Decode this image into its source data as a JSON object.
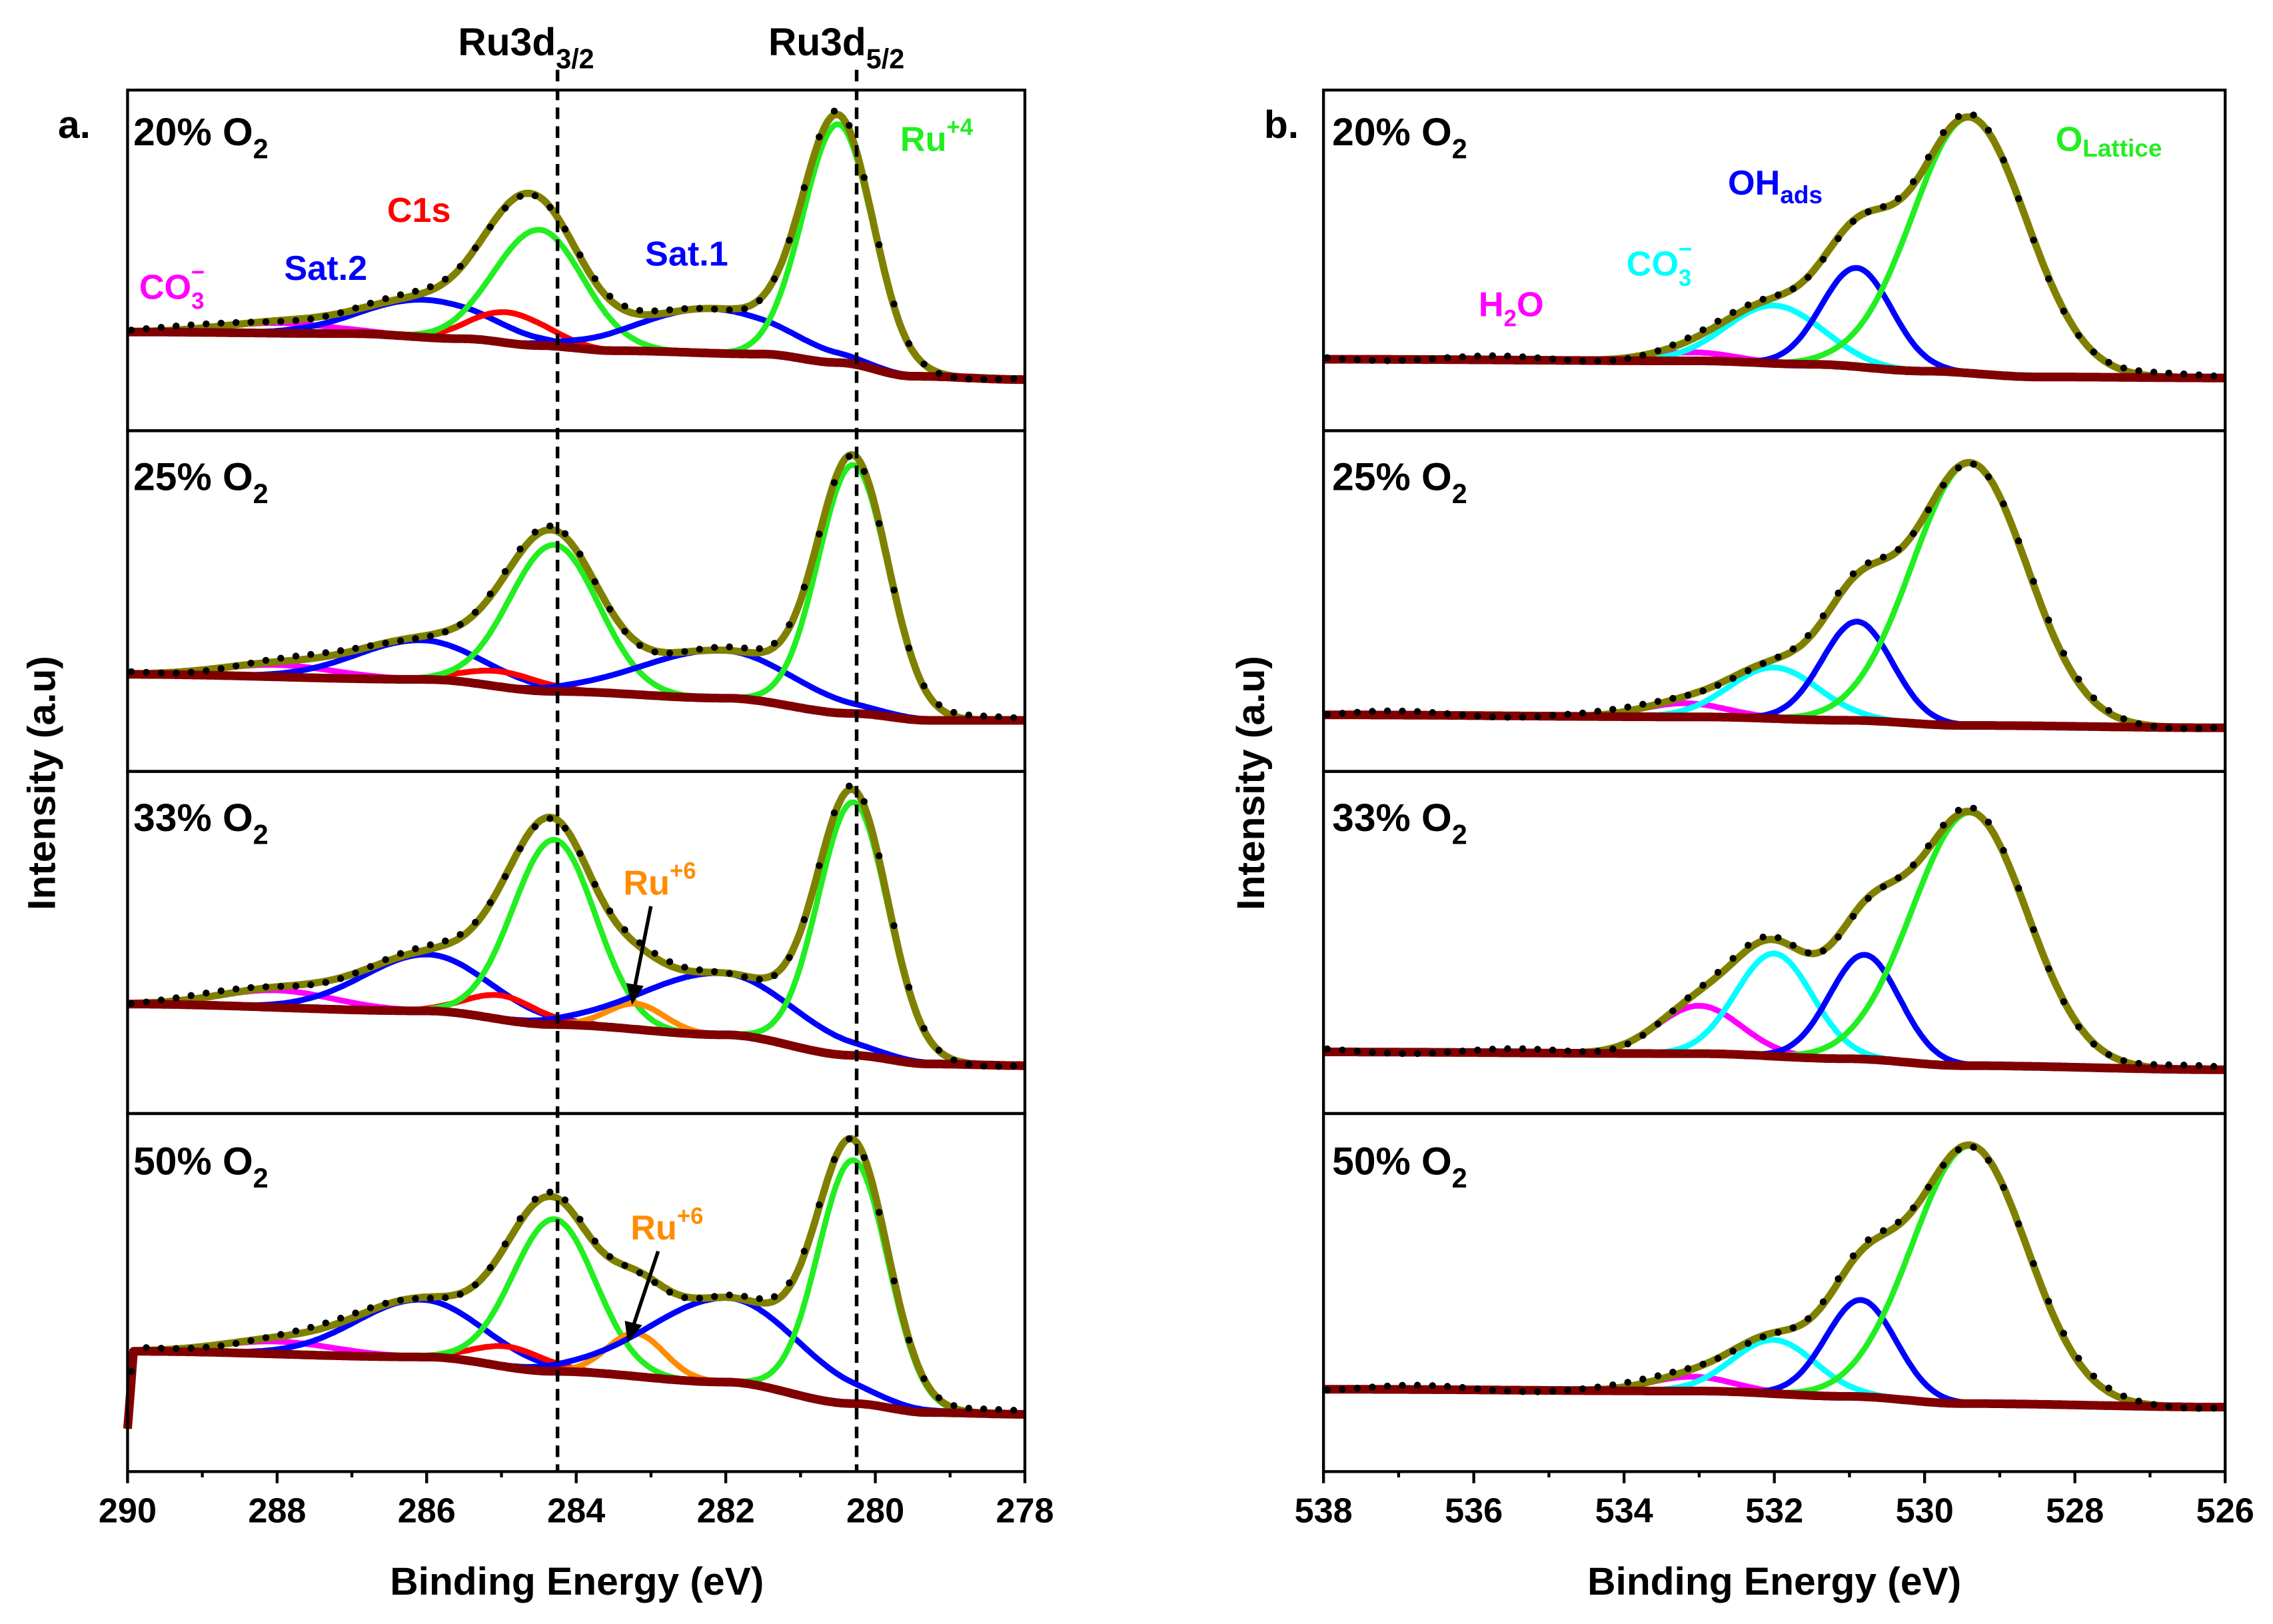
{
  "title_top": {
    "ref1": {
      "main": "Ru3d",
      "sub": "3/2"
    },
    "ref2": {
      "main": "Ru3d",
      "sub": "5/2"
    }
  },
  "colors": {
    "green": "#22ee22",
    "blue": "#0000ff",
    "red": "#ff0000",
    "magenta": "#ff00ff",
    "cyan": "#00ffff",
    "orange": "#ff8c00",
    "envelope": "#808000",
    "background": "#800000",
    "data": "#000000"
  },
  "chart_data": [
    {
      "type": "line",
      "panel_label": "a.",
      "xlabel": "Binding Energy (eV)",
      "ylabel": "Intensity (a.u)",
      "x_range": [
        290,
        278
      ],
      "y_range": [
        0,
        1
      ],
      "grid": false,
      "x_tick_values": [
        290,
        288,
        286,
        284,
        282,
        280,
        278
      ],
      "x_ticks": [
        "290",
        "288",
        "286",
        "284",
        "282",
        "280",
        "278"
      ],
      "reference_lines": [
        {
          "label": "Ru3d3/2",
          "x": 284.25
        },
        {
          "label": "Ru3d5/2",
          "x": 280.25
        }
      ],
      "annotations": {
        "ru4": {
          "main": "Ru",
          "sup": "+4"
        },
        "c1s": {
          "main": "C1s"
        },
        "sat2": {
          "main": "Sat.2"
        },
        "sat1": {
          "main": "Sat.1"
        },
        "co3": {
          "main": "CO",
          "sub": "3",
          "sup": "−"
        },
        "ru6": {
          "main": "Ru",
          "sup": "+6"
        }
      },
      "spectra": [
        {
          "label": {
            "main": "20% O",
            "sub": "2"
          },
          "background": [
            [
              290,
              0.29
            ],
            [
              287,
              0.285
            ],
            [
              285.5,
              0.27
            ],
            [
              284.5,
              0.25
            ],
            [
              283.5,
              0.235
            ],
            [
              281.5,
              0.225
            ],
            [
              280.5,
              0.2
            ],
            [
              279.5,
              0.16
            ],
            [
              278,
              0.15
            ]
          ],
          "components": [
            {
              "name": "CO3-",
              "color": "magenta",
              "center": 288.0,
              "height": 0.03,
              "fwhm": 1.8
            },
            {
              "name": "Sat.2",
              "color": "blue",
              "center": 286.0,
              "height": 0.11,
              "fwhm": 2.0
            },
            {
              "name": "C1s",
              "color": "red",
              "center": 284.9,
              "height": 0.09,
              "fwhm": 1.2
            },
            {
              "name": "Ru+4 3d3/2",
              "color": "green",
              "center": 284.5,
              "height": 0.34,
              "fwhm": 1.4
            },
            {
              "name": "Sat.1",
              "color": "blue",
              "center": 282.2,
              "height": 0.13,
              "fwhm": 2.3
            },
            {
              "name": "Ru+4 3d5/2",
              "color": "green",
              "center": 280.5,
              "height": 0.7,
              "fwhm": 1.1
            }
          ]
        },
        {
          "label": {
            "main": "25% O",
            "sub": "2"
          },
          "background": [
            [
              290,
              0.285
            ],
            [
              286,
              0.27
            ],
            [
              284.3,
              0.235
            ],
            [
              282,
              0.215
            ],
            [
              280.3,
              0.17
            ],
            [
              279.3,
              0.15
            ],
            [
              278,
              0.15
            ]
          ],
          "components": [
            {
              "name": "CO3-",
              "color": "magenta",
              "center": 288.0,
              "height": 0.035,
              "fwhm": 1.8
            },
            {
              "name": "Sat.2",
              "color": "blue",
              "center": 286.1,
              "height": 0.115,
              "fwhm": 2.0
            },
            {
              "name": "C1s",
              "color": "red",
              "center": 285.0,
              "height": 0.045,
              "fwhm": 1.2
            },
            {
              "name": "Ru+4 3d3/2",
              "color": "green",
              "center": 284.3,
              "height": 0.43,
              "fwhm": 1.4
            },
            {
              "name": "Sat.1",
              "color": "blue",
              "center": 282.1,
              "height": 0.14,
              "fwhm": 2.4
            },
            {
              "name": "Ru+4 3d5/2",
              "color": "green",
              "center": 280.3,
              "height": 0.73,
              "fwhm": 1.1
            }
          ]
        },
        {
          "label": {
            "main": "33% O",
            "sub": "2"
          },
          "background": [
            [
              290,
              0.32
            ],
            [
              286,
              0.3
            ],
            [
              284.3,
              0.26
            ],
            [
              282,
              0.23
            ],
            [
              280.3,
              0.17
            ],
            [
              279.3,
              0.145
            ],
            [
              278,
              0.14
            ]
          ],
          "components": [
            {
              "name": "CO3-",
              "color": "magenta",
              "center": 288.0,
              "height": 0.05,
              "fwhm": 1.8
            },
            {
              "name": "Sat.2",
              "color": "blue",
              "center": 286.0,
              "height": 0.165,
              "fwhm": 2.0
            },
            {
              "name": "C1s",
              "color": "red",
              "center": 285.0,
              "height": 0.07,
              "fwhm": 1.1
            },
            {
              "name": "Ru+4 3d3/2",
              "color": "green",
              "center": 284.3,
              "height": 0.54,
              "fwhm": 1.3
            },
            {
              "name": "Ru+6",
              "color": "orange",
              "center": 283.2,
              "height": 0.075,
              "fwhm": 0.9
            },
            {
              "name": "Sat.1",
              "color": "blue",
              "center": 282.1,
              "height": 0.18,
              "fwhm": 2.4
            },
            {
              "name": "Ru+4 3d5/2",
              "color": "green",
              "center": 280.3,
              "height": 0.74,
              "fwhm": 1.1
            }
          ]
        },
        {
          "label": {
            "main": "50% O",
            "sub": "2"
          },
          "background": [
            [
              290,
              0.12
            ],
            [
              289.92,
              0.336
            ],
            [
              286,
              0.32
            ],
            [
              284.3,
              0.28
            ],
            [
              282,
              0.25
            ],
            [
              280.3,
              0.19
            ],
            [
              279.3,
              0.165
            ],
            [
              278,
              0.16
            ]
          ],
          "components": [
            {
              "name": "CO3-",
              "color": "magenta",
              "center": 288.0,
              "height": 0.035,
              "fwhm": 1.8
            },
            {
              "name": "Sat.2",
              "color": "blue",
              "center": 286.1,
              "height": 0.16,
              "fwhm": 2.0
            },
            {
              "name": "C1s",
              "color": "red",
              "center": 284.9,
              "height": 0.057,
              "fwhm": 1.1
            },
            {
              "name": "Ru+4 3d3/2",
              "color": "green",
              "center": 284.3,
              "height": 0.425,
              "fwhm": 1.3
            },
            {
              "name": "Ru+6",
              "color": "orange",
              "center": 283.2,
              "height": 0.12,
              "fwhm": 0.9
            },
            {
              "name": "Sat.1",
              "color": "blue",
              "center": 282.0,
              "height": 0.235,
              "fwhm": 2.4
            },
            {
              "name": "Ru+4 3d5/2",
              "color": "green",
              "center": 280.3,
              "height": 0.68,
              "fwhm": 1.1
            }
          ]
        }
      ]
    },
    {
      "type": "line",
      "panel_label": "b.",
      "xlabel": "Binding Energy (eV)",
      "ylabel": "Intensity (a.u)",
      "x_range": [
        538,
        526
      ],
      "y_range": [
        0,
        1
      ],
      "grid": false,
      "x_tick_values": [
        538,
        536,
        534,
        532,
        530,
        528,
        526
      ],
      "x_ticks": [
        "538",
        "536",
        "534",
        "532",
        "530",
        "528",
        "526"
      ],
      "reference_lines": [],
      "annotations": {
        "olat": {
          "main": "O",
          "sub": "Lattice"
        },
        "ohads": {
          "main": "OH",
          "sub": "ads"
        },
        "co3": {
          "main": "CO",
          "sub": "3",
          "sup": "−"
        },
        "h2o": {
          "main": "H",
          "sub": "2",
          "tail": "O"
        }
      },
      "spectra": [
        {
          "label": {
            "main": "20% O",
            "sub": "2"
          },
          "background": [
            [
              538,
              0.21
            ],
            [
              533,
              0.205
            ],
            [
              531.5,
              0.195
            ],
            [
              530,
              0.175
            ],
            [
              528.5,
              0.158
            ],
            [
              526,
              0.155
            ]
          ],
          "components": [
            {
              "name": "H2O",
              "color": "magenta",
              "center": 533.1,
              "height": 0.025,
              "fwhm": 1.3
            },
            {
              "name": "CO3-",
              "color": "cyan",
              "center": 532.0,
              "height": 0.17,
              "fwhm": 1.5
            },
            {
              "name": "OHads",
              "color": "blue",
              "center": 530.9,
              "height": 0.29,
              "fwhm": 1.1
            },
            {
              "name": "OLattice",
              "color": "green",
              "center": 529.4,
              "height": 0.75,
              "fwhm": 1.8
            }
          ]
        },
        {
          "label": {
            "main": "25% O",
            "sub": "2"
          },
          "background": [
            [
              538,
              0.166
            ],
            [
              533,
              0.16
            ],
            [
              531,
              0.15
            ],
            [
              529.5,
              0.135
            ],
            [
              526,
              0.128
            ]
          ],
          "components": [
            {
              "name": "H2O",
              "color": "magenta",
              "center": 533.2,
              "height": 0.04,
              "fwhm": 1.3
            },
            {
              "name": "CO3-",
              "color": "cyan",
              "center": 532.0,
              "height": 0.15,
              "fwhm": 1.4
            },
            {
              "name": "OHads",
              "color": "blue",
              "center": 530.9,
              "height": 0.29,
              "fwhm": 1.1
            },
            {
              "name": "OLattice",
              "color": "green",
              "center": 529.4,
              "height": 0.77,
              "fwhm": 1.8
            }
          ]
        },
        {
          "label": {
            "main": "33% O",
            "sub": "2"
          },
          "background": [
            [
              538,
              0.18
            ],
            [
              533,
              0.175
            ],
            [
              531,
              0.16
            ],
            [
              529.5,
              0.14
            ],
            [
              526,
              0.128
            ]
          ],
          "components": [
            {
              "name": "H2O",
              "color": "magenta",
              "center": 533.0,
              "height": 0.14,
              "fwhm": 1.3
            },
            {
              "name": "CO3-",
              "color": "cyan",
              "center": 532.0,
              "height": 0.3,
              "fwhm": 1.2
            },
            {
              "name": "OHads",
              "color": "blue",
              "center": 530.8,
              "height": 0.305,
              "fwhm": 1.1
            },
            {
              "name": "OLattice",
              "color": "green",
              "center": 529.4,
              "height": 0.74,
              "fwhm": 1.8
            }
          ]
        },
        {
          "label": {
            "main": "50% O",
            "sub": "2"
          },
          "background": [
            [
              538,
              0.23
            ],
            [
              533,
              0.225
            ],
            [
              531,
              0.21
            ],
            [
              529.5,
              0.19
            ],
            [
              526,
              0.18
            ]
          ],
          "components": [
            {
              "name": "H2O",
              "color": "magenta",
              "center": 533.1,
              "height": 0.04,
              "fwhm": 1.3
            },
            {
              "name": "CO3-",
              "color": "cyan",
              "center": 532.0,
              "height": 0.15,
              "fwhm": 1.3
            },
            {
              "name": "OHads",
              "color": "blue",
              "center": 530.85,
              "height": 0.27,
              "fwhm": 1.1
            },
            {
              "name": "OLattice",
              "color": "green",
              "center": 529.4,
              "height": 0.72,
              "fwhm": 1.8
            }
          ]
        }
      ]
    }
  ]
}
